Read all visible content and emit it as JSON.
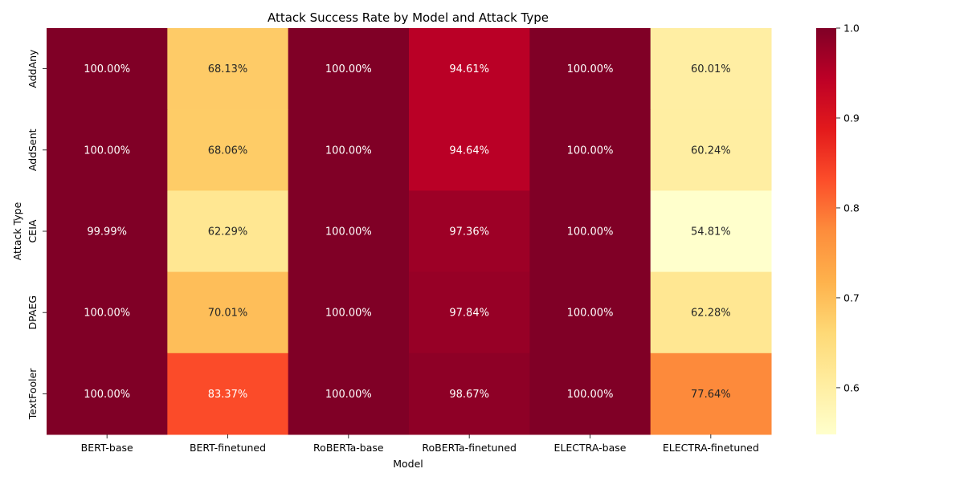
{
  "chart_data": {
    "type": "heatmap",
    "title": "Attack Success Rate by Model and Attack Type",
    "xlabel": "Model",
    "ylabel": "Attack Type",
    "x_categories": [
      "BERT-base",
      "BERT-finetuned",
      "RoBERTa-base",
      "RoBERTa-finetuned",
      "ELECTRA-base",
      "ELECTRA-finetuned"
    ],
    "y_categories": [
      "AddAny",
      "AddSent",
      "CEIA",
      "DPAEG",
      "TextFooler"
    ],
    "values": [
      [
        1.0,
        0.6813,
        1.0,
        0.9461,
        1.0,
        0.6001
      ],
      [
        1.0,
        0.6806,
        1.0,
        0.9464,
        1.0,
        0.6024
      ],
      [
        0.9999,
        0.6229,
        1.0,
        0.9736,
        1.0,
        0.5481
      ],
      [
        1.0,
        0.7001,
        1.0,
        0.9784,
        1.0,
        0.6228
      ],
      [
        1.0,
        0.8337,
        1.0,
        0.9867,
        1.0,
        0.7764
      ]
    ],
    "annotations": [
      [
        "100.00%",
        "68.13%",
        "100.00%",
        "94.61%",
        "100.00%",
        "60.01%"
      ],
      [
        "100.00%",
        "68.06%",
        "100.00%",
        "94.64%",
        "100.00%",
        "60.24%"
      ],
      [
        "99.99%",
        "62.29%",
        "100.00%",
        "97.36%",
        "100.00%",
        "54.81%"
      ],
      [
        "100.00%",
        "70.01%",
        "100.00%",
        "97.84%",
        "100.00%",
        "62.28%"
      ],
      [
        "100.00%",
        "83.37%",
        "100.00%",
        "98.67%",
        "100.00%",
        "77.64%"
      ]
    ],
    "colormap": "YlOrRd",
    "colorbar": {
      "range": [
        0.5481,
        1.0
      ],
      "ticks": [
        0.6,
        0.7,
        0.8,
        0.9,
        1.0
      ],
      "tick_labels": [
        "0.6",
        "0.7",
        "0.8",
        "0.9",
        "1.0"
      ]
    },
    "colors": {
      "stops": [
        "#ffffcc",
        "#ffeda0",
        "#fed976",
        "#feb24c",
        "#fd8d3c",
        "#fc4e2a",
        "#e31a1c",
        "#bd0026",
        "#800026"
      ],
      "text_dark": "#262626",
      "text_light": "#ffffff"
    }
  }
}
